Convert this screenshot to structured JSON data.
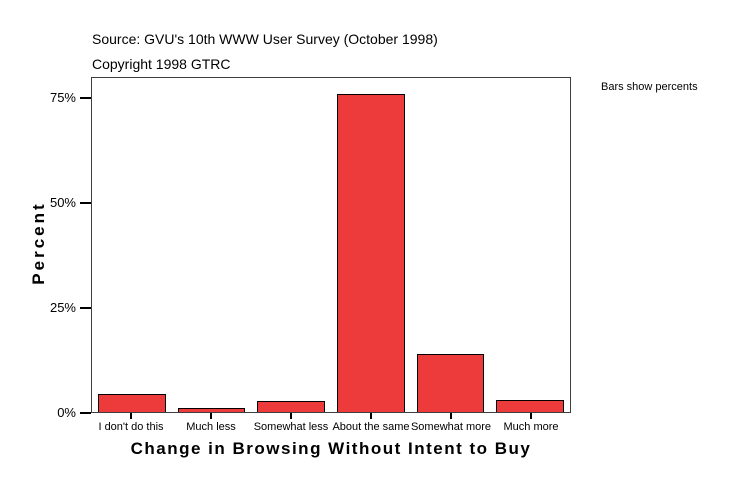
{
  "header": {
    "source_line": "Source: GVU's 10th WWW User Survey (October 1998)",
    "copyright_line": "Copyright 1998 GTRC"
  },
  "note": "Bars show percents",
  "colors": {
    "bar_fill": "#ED3A3B",
    "bar_border": "#000000",
    "frame": "#3F3F3F",
    "background": "#FFFFFF",
    "text": "#000000"
  },
  "chart_data": {
    "type": "bar",
    "title": "",
    "xlabel": "Change in Browsing Without Intent to Buy",
    "ylabel": "Percent",
    "categories": [
      "I don't do this",
      "Much less",
      "Somewhat less",
      "About the same",
      "Somewhat more",
      "Much more"
    ],
    "values": [
      4.3,
      1.0,
      2.6,
      76.2,
      14.0,
      2.8
    ],
    "ylim": [
      0,
      80
    ],
    "yticks": [
      0,
      25,
      50,
      75
    ],
    "ytick_labels": [
      "0%",
      "25%",
      "50%",
      "75%"
    ],
    "grid": false,
    "legend": "none",
    "annotation": "Bars show percents"
  }
}
